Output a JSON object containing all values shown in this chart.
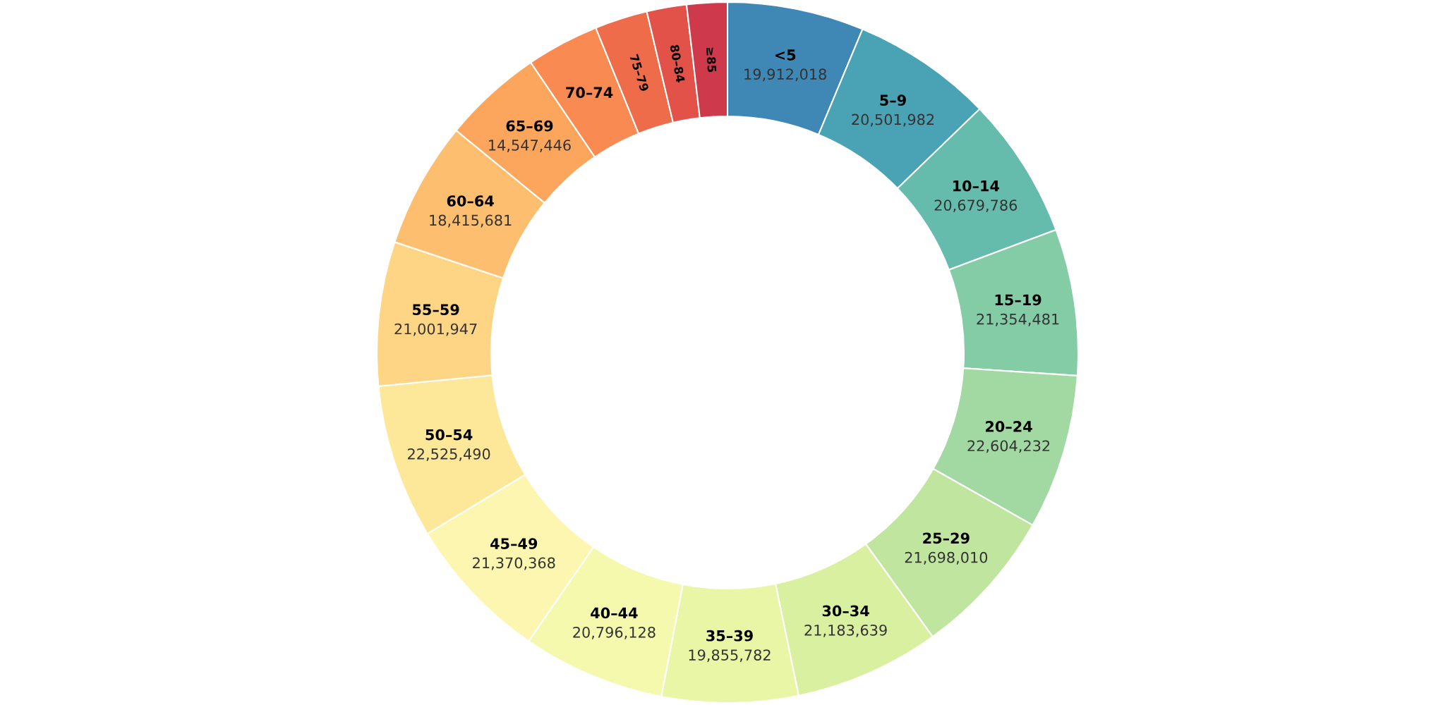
{
  "chart_data": {
    "type": "donut",
    "categories": [
      "<5",
      "5–9",
      "10–14",
      "15–19",
      "20–24",
      "25–29",
      "30–34",
      "35–39",
      "40–44",
      "45–49",
      "50–54",
      "55–59",
      "60–64",
      "65–69",
      "70–74",
      "75–79",
      "80–84",
      "≥85"
    ],
    "values": [
      19912018,
      20501982,
      20679786,
      21354481,
      22604232,
      21698010,
      21183639,
      19855782,
      20796128,
      21370368,
      22525490,
      21001947,
      18415681,
      14547446,
      10600000,
      7700000,
      5800000,
      5900000
    ],
    "value_labels": [
      "19,912,018",
      "20,501,982",
      "20,679,786",
      "21,354,481",
      "22,604,232",
      "21,698,010",
      "21,183,639",
      "19,855,782",
      "20,796,128",
      "21,370,368",
      "22,525,490",
      "21,001,947",
      "18,415,681",
      "14,547,446",
      null,
      null,
      null,
      null
    ],
    "colors": [
      "#3f88b5",
      "#4aa3b5",
      "#66bcac",
      "#84cca6",
      "#a2d9a3",
      "#c0e59f",
      "#d8f0a0",
      "#e9f6a5",
      "#f5f9ae",
      "#fcf6b0",
      "#fde89a",
      "#fed585",
      "#fdbf6f",
      "#fca55d",
      "#f88a52",
      "#ef6c4a",
      "#e25249",
      "#ce3a4b"
    ]
  }
}
